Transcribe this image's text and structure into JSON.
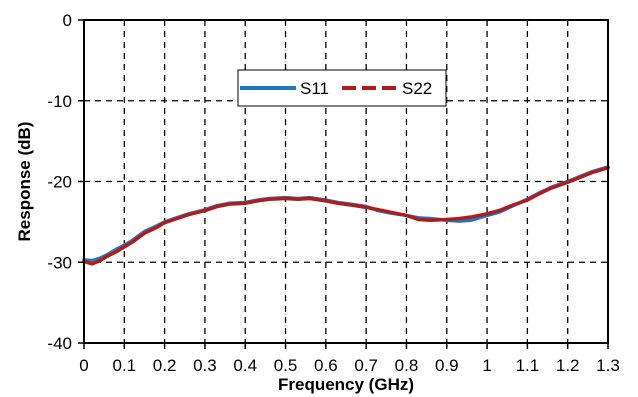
{
  "chart_data": {
    "type": "line",
    "title": "",
    "xlabel": "Frequency (GHz)",
    "ylabel": "Response (dB)",
    "xlim": [
      0,
      1.3
    ],
    "ylim": [
      -40,
      0
    ],
    "xticks": [
      0,
      0.1,
      0.2,
      0.3,
      0.4,
      0.5,
      0.6,
      0.7,
      0.8,
      0.9,
      1,
      1.1,
      1.2,
      1.3
    ],
    "xtick_labels": [
      "0",
      "0.1",
      "0.2",
      "0.3",
      "0.4",
      "0.5",
      "0.6",
      "0.7",
      "0.8",
      "0.9",
      "1",
      "1.1",
      "1.2",
      "1.3"
    ],
    "yticks": [
      -40,
      -30,
      -20,
      -10,
      0
    ],
    "ytick_labels": [
      "-40",
      "-30",
      "-20",
      "-10",
      "0"
    ],
    "grid": true,
    "grid_style": "dashed",
    "legend_position": "top-center",
    "series": [
      {
        "name": "S11",
        "color": "#1f77c4",
        "line_style": "solid",
        "x": [
          0,
          0.02,
          0.04,
          0.06,
          0.08,
          0.1,
          0.12,
          0.15,
          0.18,
          0.2,
          0.23,
          0.26,
          0.3,
          0.33,
          0.36,
          0.4,
          0.43,
          0.46,
          0.5,
          0.53,
          0.56,
          0.6,
          0.63,
          0.66,
          0.7,
          0.73,
          0.76,
          0.8,
          0.83,
          0.86,
          0.9,
          0.93,
          0.96,
          1.0,
          1.03,
          1.06,
          1.1,
          1.13,
          1.16,
          1.2,
          1.23,
          1.26,
          1.3
        ],
        "y": [
          -29.7,
          -29.8,
          -29.5,
          -29.0,
          -28.4,
          -27.9,
          -27.3,
          -26.2,
          -25.5,
          -25.0,
          -24.5,
          -24.0,
          -23.5,
          -23.0,
          -22.7,
          -22.6,
          -22.3,
          -22.1,
          -22.0,
          -22.1,
          -22.0,
          -22.3,
          -22.6,
          -22.8,
          -23.1,
          -23.6,
          -23.9,
          -24.2,
          -24.5,
          -24.6,
          -24.8,
          -24.9,
          -24.8,
          -24.2,
          -23.8,
          -23.1,
          -22.2,
          -21.4,
          -20.7,
          -20.0,
          -19.4,
          -18.8,
          -18.2
        ]
      },
      {
        "name": "S22",
        "color": "#b01c1c",
        "line_style": "solid",
        "x": [
          0,
          0.02,
          0.04,
          0.06,
          0.08,
          0.1,
          0.12,
          0.15,
          0.18,
          0.2,
          0.23,
          0.26,
          0.3,
          0.33,
          0.36,
          0.4,
          0.43,
          0.46,
          0.5,
          0.53,
          0.56,
          0.6,
          0.63,
          0.66,
          0.7,
          0.73,
          0.76,
          0.8,
          0.83,
          0.86,
          0.9,
          0.93,
          0.96,
          1.0,
          1.03,
          1.06,
          1.1,
          1.13,
          1.16,
          1.2,
          1.23,
          1.26,
          1.3
        ],
        "y": [
          -29.9,
          -30.2,
          -29.8,
          -29.2,
          -28.7,
          -28.1,
          -27.5,
          -26.4,
          -25.7,
          -25.1,
          -24.6,
          -24.1,
          -23.6,
          -23.1,
          -22.8,
          -22.7,
          -22.4,
          -22.2,
          -22.1,
          -22.2,
          -22.1,
          -22.4,
          -22.7,
          -22.9,
          -23.2,
          -23.5,
          -23.8,
          -24.2,
          -24.7,
          -24.8,
          -24.7,
          -24.6,
          -24.4,
          -24.0,
          -23.6,
          -23.0,
          -22.3,
          -21.5,
          -20.8,
          -20.1,
          -19.5,
          -18.9,
          -18.3
        ]
      }
    ]
  }
}
